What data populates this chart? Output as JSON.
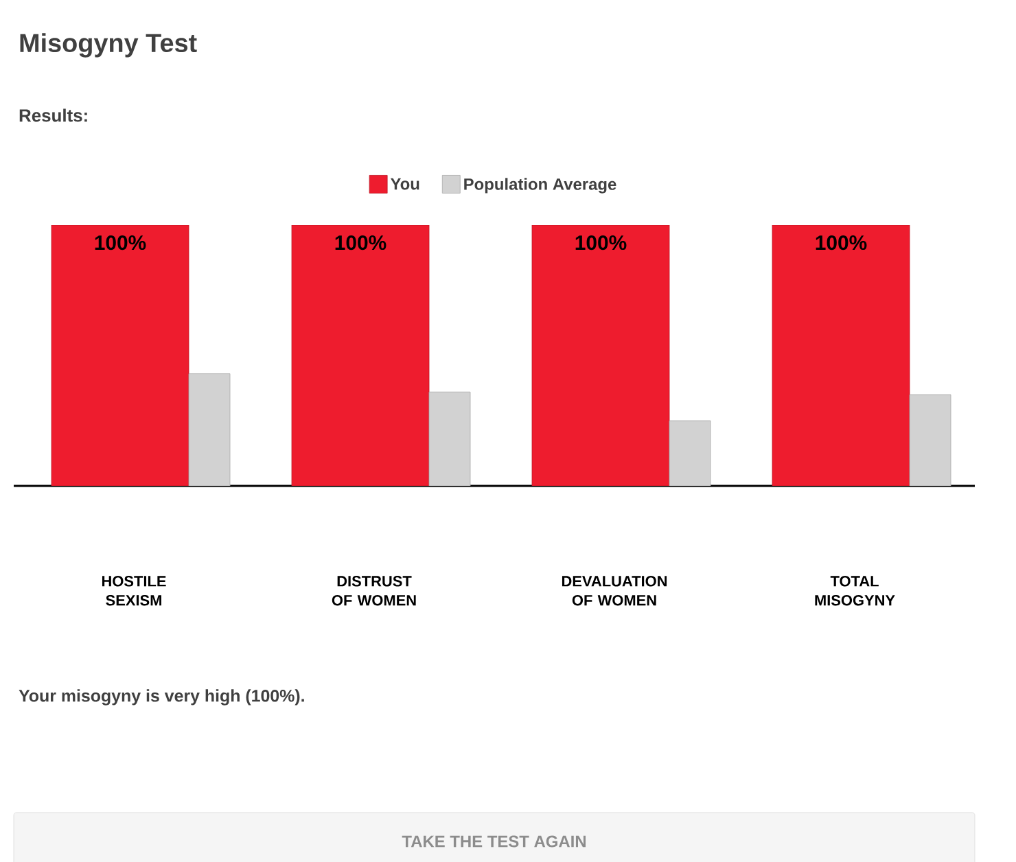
{
  "chart_data": {
    "type": "bar",
    "title": "Misogyny Test",
    "subtitle": "Results:",
    "categories": [
      "HOSTILE SEXISM",
      "DISTRUST OF WOMEN",
      "DEVALUATION OF WOMEN",
      "TOTAL MISOGYNY"
    ],
    "series": [
      {
        "name": "You",
        "color": "#ee1c2e",
        "values": [
          100,
          100,
          100,
          100
        ],
        "value_labels": [
          "100%",
          "100%",
          "100%",
          "100%"
        ]
      },
      {
        "name": "Population Average",
        "color": "#d2d2d2",
        "values": [
          43,
          36,
          25,
          35
        ]
      }
    ],
    "ylim": [
      0,
      100
    ],
    "legend": "top",
    "tick_labels": "x",
    "annotations": [
      "Your misogyny is very high (100%).",
      "TAKE THE TEST AGAIN"
    ]
  }
}
